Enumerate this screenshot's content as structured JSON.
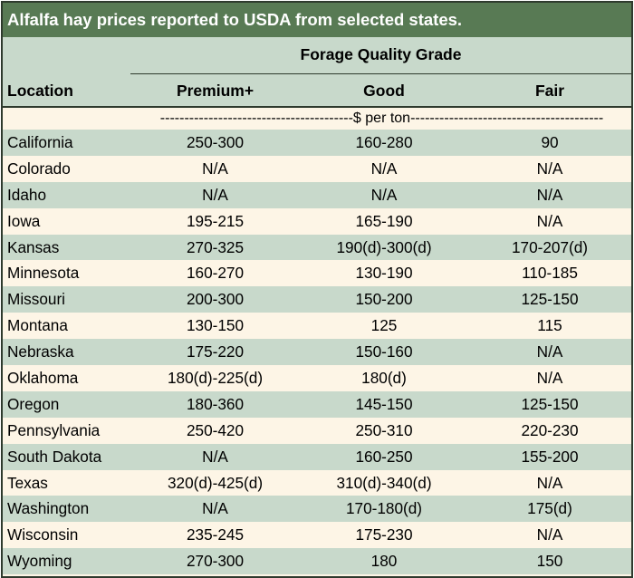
{
  "title": "Alfalfa hay prices reported to USDA from selected states.",
  "header": {
    "group_label": "Forage Quality Grade",
    "location": "Location",
    "premium": "Premium+",
    "good": "Good",
    "fair": "Fair"
  },
  "unit_row": "----------------------------------------$ per ton----------------------------------------",
  "rows": [
    {
      "location": "California",
      "premium": "250-300",
      "good": "160-280",
      "fair": "90"
    },
    {
      "location": "Colorado",
      "premium": "N/A",
      "good": "N/A",
      "fair": "N/A"
    },
    {
      "location": "Idaho",
      "premium": "N/A",
      "good": "N/A",
      "fair": "N/A"
    },
    {
      "location": "Iowa",
      "premium": "195-215",
      "good": "165-190",
      "fair": "N/A"
    },
    {
      "location": "Kansas",
      "premium": "270-325",
      "good": "190(d)-300(d)",
      "fair": "170-207(d)"
    },
    {
      "location": "Minnesota",
      "premium": "160-270",
      "good": "130-190",
      "fair": "110-185"
    },
    {
      "location": "Missouri",
      "premium": "200-300",
      "good": "150-200",
      "fair": "125-150"
    },
    {
      "location": "Montana",
      "premium": "130-150",
      "good": "125",
      "fair": "115"
    },
    {
      "location": "Nebraska",
      "premium": "175-220",
      "good": "150-160",
      "fair": "N/A"
    },
    {
      "location": "Oklahoma",
      "premium": "180(d)-225(d)",
      "good": "180(d)",
      "fair": "N/A"
    },
    {
      "location": "Oregon",
      "premium": "180-360",
      "good": "145-150",
      "fair": "125-150"
    },
    {
      "location": "Pennsylvania",
      "premium": "250-420",
      "good": "250-310",
      "fair": "220-230"
    },
    {
      "location": "South Dakota",
      "premium": "N/A",
      "good": "160-250",
      "fair": "155-200"
    },
    {
      "location": "Texas",
      "premium": "320(d)-425(d)",
      "good": "310(d)-340(d)",
      "fair": "N/A"
    },
    {
      "location": "Washington",
      "premium": "N/A",
      "good": "170-180(d)",
      "fair": "175(d)"
    },
    {
      "location": "Wisconsin",
      "premium": "235-245",
      "good": "175-230",
      "fair": "N/A"
    },
    {
      "location": "Wyoming",
      "premium": "270-300",
      "good": "180",
      "fair": "150"
    }
  ],
  "colors": {
    "title_bg": "#587a54",
    "band": "#c8d9cb",
    "cream": "#fdf5e6",
    "border": "#2e3a2d"
  }
}
